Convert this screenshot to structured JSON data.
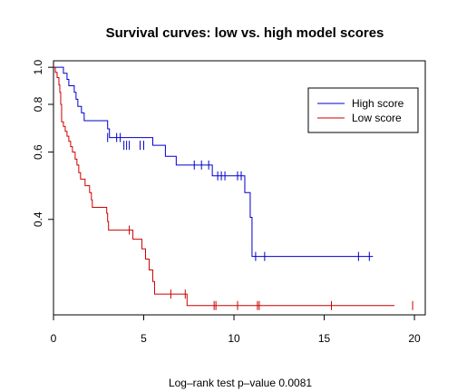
{
  "chart_data": {
    "type": "line",
    "subtype": "kaplan-meier step",
    "title": "Survival curves: low vs. high model scores",
    "footnote": "Log–rank test p–value  0.0081",
    "xlabel": "",
    "ylabel": "",
    "xlim": [
      0,
      20.6
    ],
    "ylim": [
      0.225,
      1.04
    ],
    "y_scale": "log",
    "x_ticks": [
      0,
      5,
      10,
      15,
      20
    ],
    "x_tick_labels": [
      "0",
      "5",
      "10",
      "15",
      "20"
    ],
    "y_ticks": [
      0.4,
      0.6,
      0.8,
      1.0
    ],
    "y_tick_labels": [
      "0.4",
      "0.6",
      "0.8",
      "1.0"
    ],
    "legend": {
      "position": "top-right",
      "entries": [
        "High score",
        "Low score"
      ]
    },
    "series": [
      {
        "name": "High score",
        "color": "#0000cc",
        "steps": [
          [
            0,
            1.0
          ],
          [
            0.55,
            0.965
          ],
          [
            0.75,
            0.93
          ],
          [
            0.85,
            0.895
          ],
          [
            1.15,
            0.86
          ],
          [
            1.25,
            0.825
          ],
          [
            1.35,
            0.79
          ],
          [
            1.55,
            0.76
          ],
          [
            1.7,
            0.725
          ],
          [
            3.0,
            0.69
          ],
          [
            3.1,
            0.655
          ],
          [
            5.5,
            0.625
          ],
          [
            6.2,
            0.585
          ],
          [
            6.8,
            0.555
          ],
          [
            8.8,
            0.52
          ],
          [
            10.6,
            0.47
          ],
          [
            10.9,
            0.405
          ],
          [
            11.0,
            0.32
          ],
          [
            17.7,
            0.32
          ]
        ],
        "censored": [
          [
            3.0,
            0.655
          ],
          [
            3.5,
            0.655
          ],
          [
            3.7,
            0.655
          ],
          [
            3.9,
            0.625
          ],
          [
            4.05,
            0.625
          ],
          [
            4.2,
            0.625
          ],
          [
            4.8,
            0.625
          ],
          [
            5.0,
            0.625
          ],
          [
            7.8,
            0.555
          ],
          [
            8.2,
            0.555
          ],
          [
            8.6,
            0.555
          ],
          [
            9.1,
            0.52
          ],
          [
            9.3,
            0.52
          ],
          [
            9.5,
            0.52
          ],
          [
            10.2,
            0.52
          ],
          [
            10.4,
            0.52
          ],
          [
            11.2,
            0.32
          ],
          [
            11.7,
            0.32
          ],
          [
            16.9,
            0.32
          ],
          [
            17.5,
            0.32
          ]
        ]
      },
      {
        "name": "Low score",
        "color": "#cc0000",
        "steps": [
          [
            0,
            1.0
          ],
          [
            0.1,
            0.97
          ],
          [
            0.2,
            0.94
          ],
          [
            0.3,
            0.9
          ],
          [
            0.35,
            0.86
          ],
          [
            0.4,
            0.8
          ],
          [
            0.45,
            0.72
          ],
          [
            0.55,
            0.7
          ],
          [
            0.65,
            0.68
          ],
          [
            0.75,
            0.66
          ],
          [
            0.85,
            0.64
          ],
          [
            0.95,
            0.62
          ],
          [
            1.05,
            0.6
          ],
          [
            1.2,
            0.575
          ],
          [
            1.3,
            0.555
          ],
          [
            1.4,
            0.53
          ],
          [
            1.5,
            0.51
          ],
          [
            1.75,
            0.49
          ],
          [
            2.0,
            0.47
          ],
          [
            2.1,
            0.45
          ],
          [
            2.15,
            0.43
          ],
          [
            2.95,
            0.415
          ],
          [
            3.0,
            0.395
          ],
          [
            3.05,
            0.375
          ],
          [
            4.4,
            0.355
          ],
          [
            4.9,
            0.335
          ],
          [
            5.1,
            0.315
          ],
          [
            5.3,
            0.295
          ],
          [
            5.5,
            0.275
          ],
          [
            5.6,
            0.255
          ],
          [
            7.4,
            0.238
          ],
          [
            18.9,
            0.238
          ]
        ],
        "censored": [
          [
            4.2,
            0.375
          ],
          [
            6.5,
            0.255
          ],
          [
            7.3,
            0.255
          ],
          [
            8.9,
            0.238
          ],
          [
            9.0,
            0.238
          ],
          [
            10.2,
            0.238
          ],
          [
            11.3,
            0.238
          ],
          [
            11.4,
            0.238
          ],
          [
            15.4,
            0.238
          ],
          [
            19.9,
            0.238
          ]
        ]
      }
    ]
  }
}
